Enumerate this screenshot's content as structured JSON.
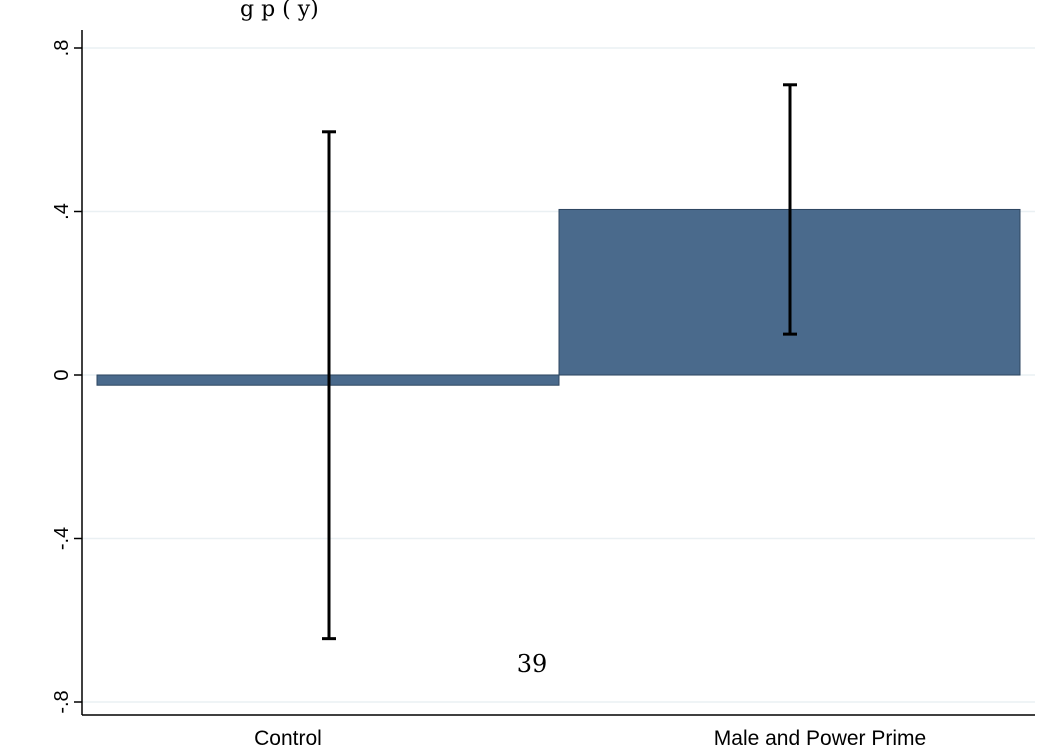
{
  "chart_data": {
    "type": "bar",
    "title_fragment": "g                                       p                                          (          y)",
    "categories": [
      "Control",
      "Male and Power Prime"
    ],
    "values": [
      -0.025,
      0.405
    ],
    "error_bars": [
      {
        "low": -0.645,
        "high": 0.595
      },
      {
        "low": 0.1,
        "high": 0.71
      }
    ],
    "y_ticks": [
      -0.8,
      -0.4,
      0,
      0.4,
      0.8
    ],
    "y_tick_labels": [
      "-.8",
      "-.4",
      "0",
      ".4",
      ".8"
    ],
    "ylim": [
      -0.82,
      0.84
    ],
    "grid": true,
    "bar_color": "#4a6a8c",
    "error_bar_color": "#000000"
  },
  "annotation": "39"
}
